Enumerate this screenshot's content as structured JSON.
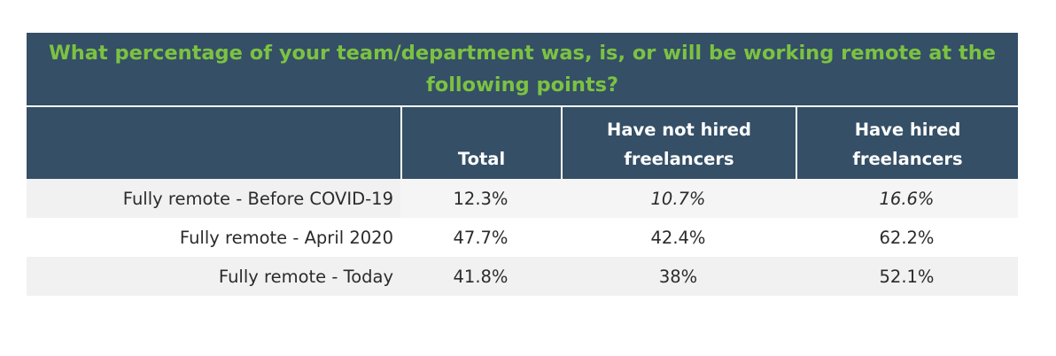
{
  "chart_data": {
    "type": "table",
    "title": "What percentage of your team/department was, is, or will be working remote at the following points?",
    "columns": [
      "",
      "Total",
      "Have not hired freelancers",
      "Have hired freelancers"
    ],
    "header": {
      "label": "",
      "total": "Total",
      "not_hired": "Have not hired freelancers",
      "hired": "Have hired freelancers"
    },
    "rows": [
      {
        "label": "Fully remote - Before COVID-19",
        "total": "12.3%",
        "not_hired": "10.7%",
        "hired": "16.6%"
      },
      {
        "label": "Fully remote - April 2020",
        "total": "47.7%",
        "not_hired": "42.4%",
        "hired": "62.2%"
      },
      {
        "label": "Fully remote - Today",
        "total": "41.8%",
        "not_hired": "38%",
        "hired": "52.1%"
      }
    ],
    "values": {
      "series": [
        {
          "name": "Total",
          "values": [
            12.3,
            47.7,
            41.8
          ]
        },
        {
          "name": "Have not hired freelancers",
          "values": [
            10.7,
            42.4,
            38
          ]
        },
        {
          "name": "Have hired freelancers",
          "values": [
            16.6,
            62.2,
            52.1
          ]
        }
      ]
    }
  },
  "colors": {
    "header_bg": "#344f66",
    "title_text": "#7cc242",
    "header_text": "#ffffff",
    "row_shade": "#f1f1f1",
    "body_text": "#2b2b2b"
  }
}
